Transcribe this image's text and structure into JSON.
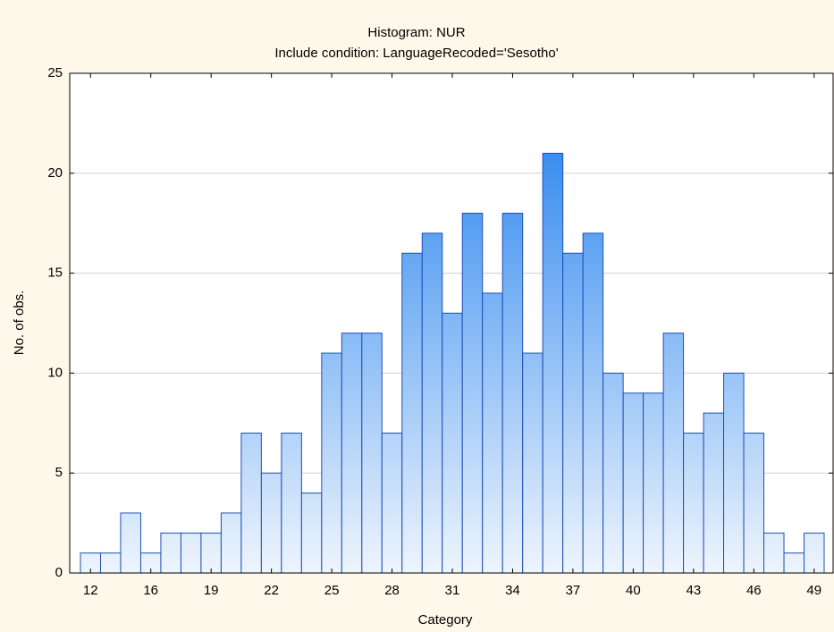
{
  "chart_data": {
    "type": "bar",
    "title": "Histogram: NUR",
    "subtitle": "Include condition: LanguageRecoded='Sesotho'",
    "x_label": "Category",
    "y_label": "No. of obs.",
    "categories": [
      "12",
      null,
      null,
      "16",
      null,
      null,
      "19",
      null,
      null,
      "22",
      null,
      null,
      "25",
      null,
      null,
      "28",
      null,
      null,
      "31",
      null,
      null,
      "34",
      null,
      null,
      "37",
      null,
      null,
      "40",
      null,
      null,
      "43",
      null,
      null,
      "46",
      null,
      null,
      "49"
    ],
    "values": [
      1,
      1,
      3,
      1,
      2,
      2,
      2,
      3,
      7,
      5,
      7,
      4,
      11,
      12,
      12,
      7,
      16,
      17,
      13,
      18,
      14,
      18,
      11,
      21,
      16,
      17,
      10,
      9,
      9,
      12,
      7,
      8,
      10,
      7,
      2,
      1,
      2
    ],
    "color": "#3a8ef0",
    "ylim": [
      0,
      25
    ],
    "yticks": [
      0,
      5,
      10,
      15,
      20,
      25
    ],
    "grid": true
  }
}
